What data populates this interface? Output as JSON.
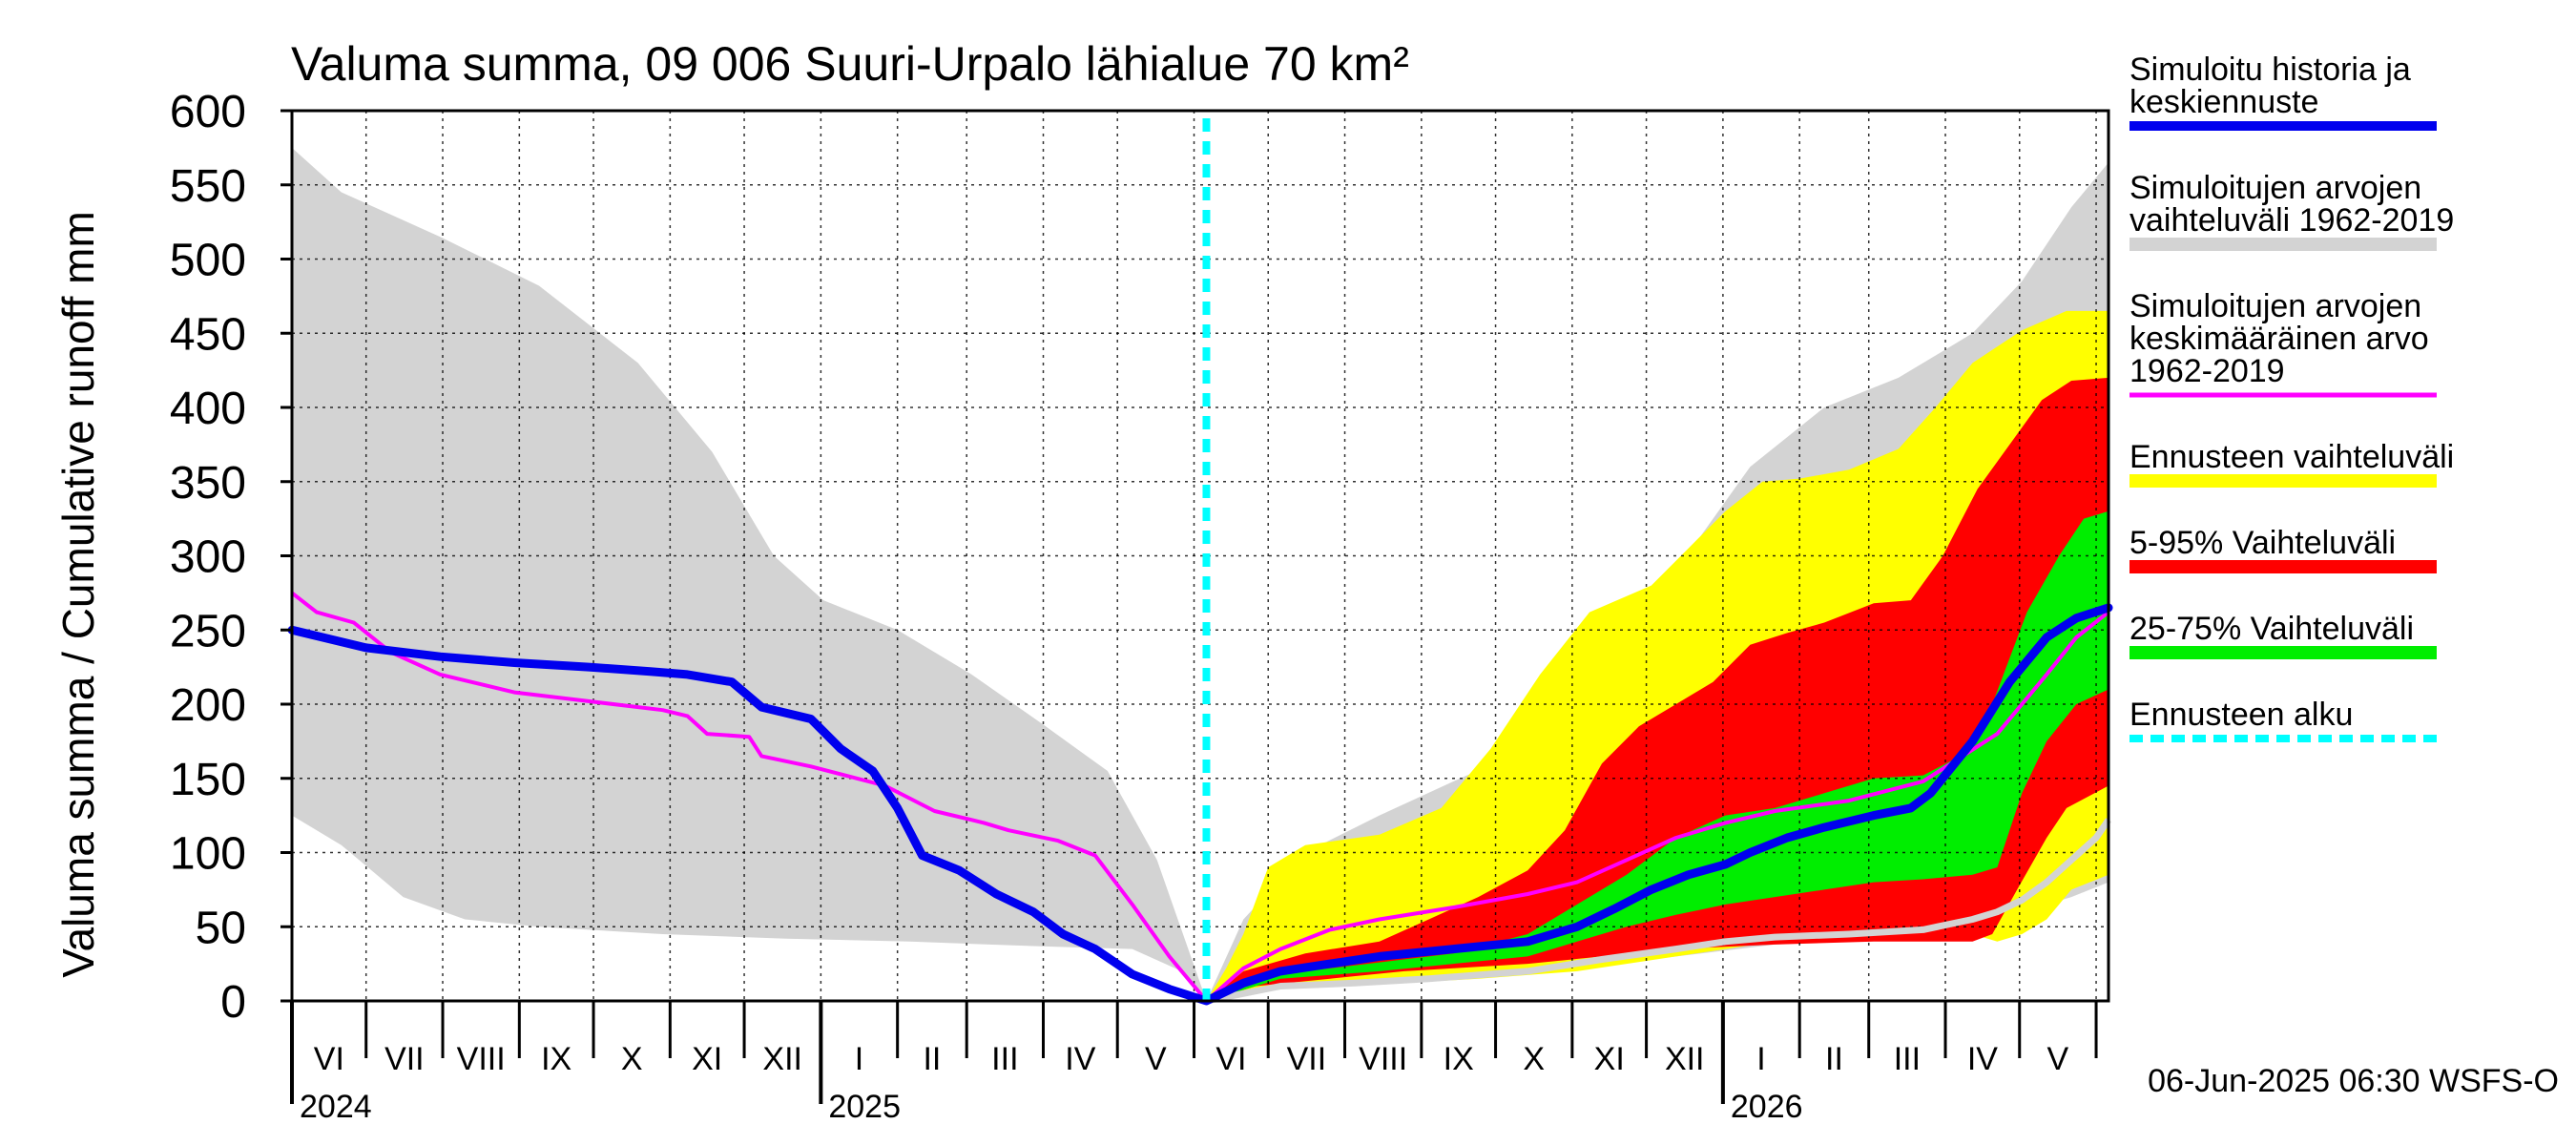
{
  "chart_data": {
    "type": "area",
    "title": "Valuma summa, 09 006 Suuri-Urpalo lähialue 70 km²",
    "ylabel": "Valuma summa / Cumulative runoff    mm",
    "ylim": [
      0,
      600
    ],
    "yticks": [
      0,
      50,
      100,
      150,
      200,
      250,
      300,
      350,
      400,
      450,
      500,
      550,
      600
    ],
    "grid": true,
    "xlim_days": [
      0,
      735
    ],
    "forecast_start_day": 370,
    "month_starts": [
      0,
      30,
      61,
      92,
      122,
      153,
      183,
      214,
      245,
      273,
      304,
      334,
      365,
      395,
      426,
      457,
      487,
      518,
      548,
      579,
      610,
      638,
      669,
      699,
      730
    ],
    "month_labels": [
      "VI",
      "VII",
      "VIII",
      "IX",
      "X",
      "XI",
      "XII",
      "I",
      "II",
      "III",
      "IV",
      "V",
      "VI",
      "VII",
      "VIII",
      "IX",
      "X",
      "XI",
      "XII",
      "I",
      "II",
      "III",
      "IV",
      "V"
    ],
    "year_labels": [
      {
        "day": 0,
        "label": "2024"
      },
      {
        "day": 214,
        "label": "2025"
      },
      {
        "day": 579,
        "label": "2026"
      }
    ],
    "timestamp": "06-Jun-2025 06:30 WSFS-O",
    "legend": [
      {
        "key": "sim",
        "lines": [
          "Simuloitu historia ja",
          "keskiennuste"
        ],
        "color": "#0000ee",
        "style": "line"
      },
      {
        "key": "range",
        "lines": [
          "Simuloitujen arvojen",
          "vaihteluväli 1962-2019"
        ],
        "color": "#d3d3d3",
        "style": "band"
      },
      {
        "key": "mean",
        "lines": [
          "Simuloitujen arvojen",
          "keskimääräinen arvo",
          "   1962-2019"
        ],
        "color": "#ff00ff",
        "style": "thin"
      },
      {
        "key": "fc_range",
        "lines": [
          "Ennusteen vaihteluväli"
        ],
        "color": "#ffff00",
        "style": "band"
      },
      {
        "key": "p5_95",
        "lines": [
          "5-95% Vaihteluväli"
        ],
        "color": "#ff0000",
        "style": "band"
      },
      {
        "key": "p25_75",
        "lines": [
          "25-75% Vaihteluväli"
        ],
        "color": "#00ee00",
        "style": "band"
      },
      {
        "key": "fc_start",
        "lines": [
          "Ennusteen alku"
        ],
        "color": "#00ffff",
        "style": "dashed"
      }
    ],
    "series": {
      "hist_upper": [
        [
          0,
          575
        ],
        [
          20,
          545
        ],
        [
          60,
          515
        ],
        [
          100,
          482
        ],
        [
          140,
          430
        ],
        [
          170,
          370
        ],
        [
          195,
          300
        ],
        [
          215,
          270
        ],
        [
          245,
          250
        ],
        [
          275,
          220
        ],
        [
          305,
          185
        ],
        [
          330,
          155
        ],
        [
          350,
          95
        ],
        [
          370,
          0
        ],
        [
          385,
          55
        ],
        [
          410,
          100
        ],
        [
          440,
          125
        ],
        [
          470,
          148
        ],
        [
          500,
          170
        ],
        [
          530,
          215
        ],
        [
          560,
          290
        ],
        [
          590,
          360
        ],
        [
          620,
          400
        ],
        [
          650,
          420
        ],
        [
          680,
          450
        ],
        [
          700,
          485
        ],
        [
          720,
          535
        ],
        [
          735,
          565
        ]
      ],
      "hist_lower": [
        [
          0,
          125
        ],
        [
          20,
          105
        ],
        [
          45,
          70
        ],
        [
          70,
          55
        ],
        [
          100,
          50
        ],
        [
          150,
          45
        ],
        [
          200,
          42
        ],
        [
          250,
          40
        ],
        [
          300,
          37
        ],
        [
          340,
          35
        ],
        [
          360,
          20
        ],
        [
          370,
          0
        ],
        [
          400,
          10
        ],
        [
          450,
          15
        ],
        [
          500,
          20
        ],
        [
          550,
          28
        ],
        [
          600,
          38
        ],
        [
          650,
          42
        ],
        [
          700,
          60
        ],
        [
          720,
          70
        ],
        [
          735,
          80
        ]
      ],
      "yellow_upper": [
        [
          370,
          0
        ],
        [
          378,
          22
        ],
        [
          385,
          45
        ],
        [
          395,
          90
        ],
        [
          410,
          105
        ],
        [
          440,
          112
        ],
        [
          465,
          130
        ],
        [
          485,
          170
        ],
        [
          505,
          220
        ],
        [
          525,
          262
        ],
        [
          550,
          280
        ],
        [
          565,
          305
        ],
        [
          580,
          330
        ],
        [
          595,
          350
        ],
        [
          610,
          352
        ],
        [
          630,
          358
        ],
        [
          650,
          372
        ],
        [
          665,
          400
        ],
        [
          680,
          430
        ],
        [
          700,
          452
        ],
        [
          718,
          465
        ],
        [
          735,
          465
        ]
      ],
      "yellow_lower": [
        [
          370,
          0
        ],
        [
          400,
          10
        ],
        [
          450,
          12
        ],
        [
          480,
          15
        ],
        [
          520,
          20
        ],
        [
          560,
          30
        ],
        [
          600,
          40
        ],
        [
          650,
          42
        ],
        [
          680,
          45
        ],
        [
          690,
          40
        ],
        [
          700,
          45
        ],
        [
          710,
          55
        ],
        [
          720,
          75
        ],
        [
          735,
          85
        ]
      ],
      "red_upper": [
        [
          370,
          0
        ],
        [
          385,
          20
        ],
        [
          410,
          32
        ],
        [
          440,
          40
        ],
        [
          460,
          55
        ],
        [
          480,
          70
        ],
        [
          500,
          88
        ],
        [
          515,
          115
        ],
        [
          530,
          160
        ],
        [
          545,
          185
        ],
        [
          560,
          200
        ],
        [
          575,
          215
        ],
        [
          590,
          240
        ],
        [
          605,
          248
        ],
        [
          620,
          255
        ],
        [
          640,
          268
        ],
        [
          655,
          270
        ],
        [
          668,
          300
        ],
        [
          682,
          345
        ],
        [
          695,
          375
        ],
        [
          708,
          405
        ],
        [
          720,
          418
        ],
        [
          735,
          420
        ]
      ],
      "red_lower": [
        [
          370,
          0
        ],
        [
          390,
          10
        ],
        [
          420,
          15
        ],
        [
          450,
          20
        ],
        [
          470,
          22
        ],
        [
          500,
          25
        ],
        [
          530,
          30
        ],
        [
          560,
          35
        ],
        [
          600,
          38
        ],
        [
          640,
          40
        ],
        [
          680,
          40
        ],
        [
          688,
          45
        ],
        [
          698,
          75
        ],
        [
          710,
          110
        ],
        [
          718,
          130
        ],
        [
          735,
          145
        ]
      ],
      "green_upper": [
        [
          370,
          0
        ],
        [
          400,
          18
        ],
        [
          440,
          26
        ],
        [
          470,
          32
        ],
        [
          500,
          45
        ],
        [
          520,
          65
        ],
        [
          540,
          85
        ],
        [
          560,
          110
        ],
        [
          580,
          125
        ],
        [
          600,
          130
        ],
        [
          620,
          140
        ],
        [
          640,
          150
        ],
        [
          660,
          152
        ],
        [
          675,
          165
        ],
        [
          688,
          200
        ],
        [
          702,
          262
        ],
        [
          715,
          300
        ],
        [
          725,
          325
        ],
        [
          735,
          330
        ]
      ],
      "green_lower": [
        [
          370,
          0
        ],
        [
          400,
          15
        ],
        [
          440,
          20
        ],
        [
          470,
          25
        ],
        [
          500,
          30
        ],
        [
          520,
          40
        ],
        [
          540,
          50
        ],
        [
          560,
          58
        ],
        [
          580,
          65
        ],
        [
          600,
          70
        ],
        [
          620,
          75
        ],
        [
          640,
          80
        ],
        [
          660,
          82
        ],
        [
          680,
          85
        ],
        [
          690,
          90
        ],
        [
          700,
          140
        ],
        [
          710,
          175
        ],
        [
          722,
          200
        ],
        [
          735,
          210
        ]
      ],
      "sim_main": [
        [
          0,
          250
        ],
        [
          30,
          238
        ],
        [
          60,
          232
        ],
        [
          90,
          228
        ],
        [
          120,
          225
        ],
        [
          145,
          222
        ],
        [
          160,
          220
        ],
        [
          178,
          215
        ],
        [
          190,
          198
        ],
        [
          210,
          190
        ],
        [
          222,
          170
        ],
        [
          235,
          155
        ],
        [
          245,
          130
        ],
        [
          255,
          98
        ],
        [
          270,
          88
        ],
        [
          285,
          72
        ],
        [
          300,
          60
        ],
        [
          312,
          45
        ],
        [
          325,
          35
        ],
        [
          340,
          18
        ],
        [
          355,
          8
        ],
        [
          370,
          0
        ],
        [
          385,
          12
        ],
        [
          400,
          20
        ],
        [
          420,
          25
        ],
        [
          440,
          30
        ],
        [
          470,
          35
        ],
        [
          500,
          40
        ],
        [
          520,
          50
        ],
        [
          535,
          62
        ],
        [
          550,
          75
        ],
        [
          565,
          85
        ],
        [
          580,
          92
        ],
        [
          590,
          100
        ],
        [
          605,
          110
        ],
        [
          620,
          117
        ],
        [
          640,
          125
        ],
        [
          655,
          130
        ],
        [
          663,
          140
        ],
        [
          680,
          175
        ],
        [
          695,
          215
        ],
        [
          710,
          245
        ],
        [
          722,
          258
        ],
        [
          735,
          265
        ]
      ],
      "mean_line": [
        [
          0,
          275
        ],
        [
          10,
          262
        ],
        [
          25,
          255
        ],
        [
          40,
          235
        ],
        [
          60,
          220
        ],
        [
          90,
          208
        ],
        [
          120,
          202
        ],
        [
          150,
          196
        ],
        [
          160,
          192
        ],
        [
          168,
          180
        ],
        [
          185,
          178
        ],
        [
          190,
          165
        ],
        [
          210,
          158
        ],
        [
          240,
          145
        ],
        [
          260,
          128
        ],
        [
          280,
          120
        ],
        [
          290,
          115
        ],
        [
          310,
          108
        ],
        [
          325,
          98
        ],
        [
          340,
          65
        ],
        [
          355,
          30
        ],
        [
          370,
          0
        ],
        [
          385,
          22
        ],
        [
          400,
          35
        ],
        [
          420,
          48
        ],
        [
          440,
          55
        ],
        [
          470,
          63
        ],
        [
          500,
          72
        ],
        [
          520,
          80
        ],
        [
          540,
          95
        ],
        [
          560,
          110
        ],
        [
          580,
          120
        ],
        [
          600,
          128
        ],
        [
          630,
          135
        ],
        [
          660,
          148
        ],
        [
          690,
          180
        ],
        [
          710,
          220
        ],
        [
          722,
          245
        ],
        [
          735,
          262
        ]
      ],
      "grey_line": [
        [
          370,
          0
        ],
        [
          400,
          10
        ],
        [
          430,
          12
        ],
        [
          460,
          15
        ],
        [
          500,
          20
        ],
        [
          530,
          28
        ],
        [
          560,
          35
        ],
        [
          580,
          40
        ],
        [
          600,
          43
        ],
        [
          630,
          45
        ],
        [
          660,
          48
        ],
        [
          680,
          55
        ],
        [
          690,
          60
        ],
        [
          700,
          68
        ],
        [
          710,
          80
        ],
        [
          720,
          95
        ],
        [
          730,
          110
        ],
        [
          735,
          122
        ]
      ]
    }
  }
}
